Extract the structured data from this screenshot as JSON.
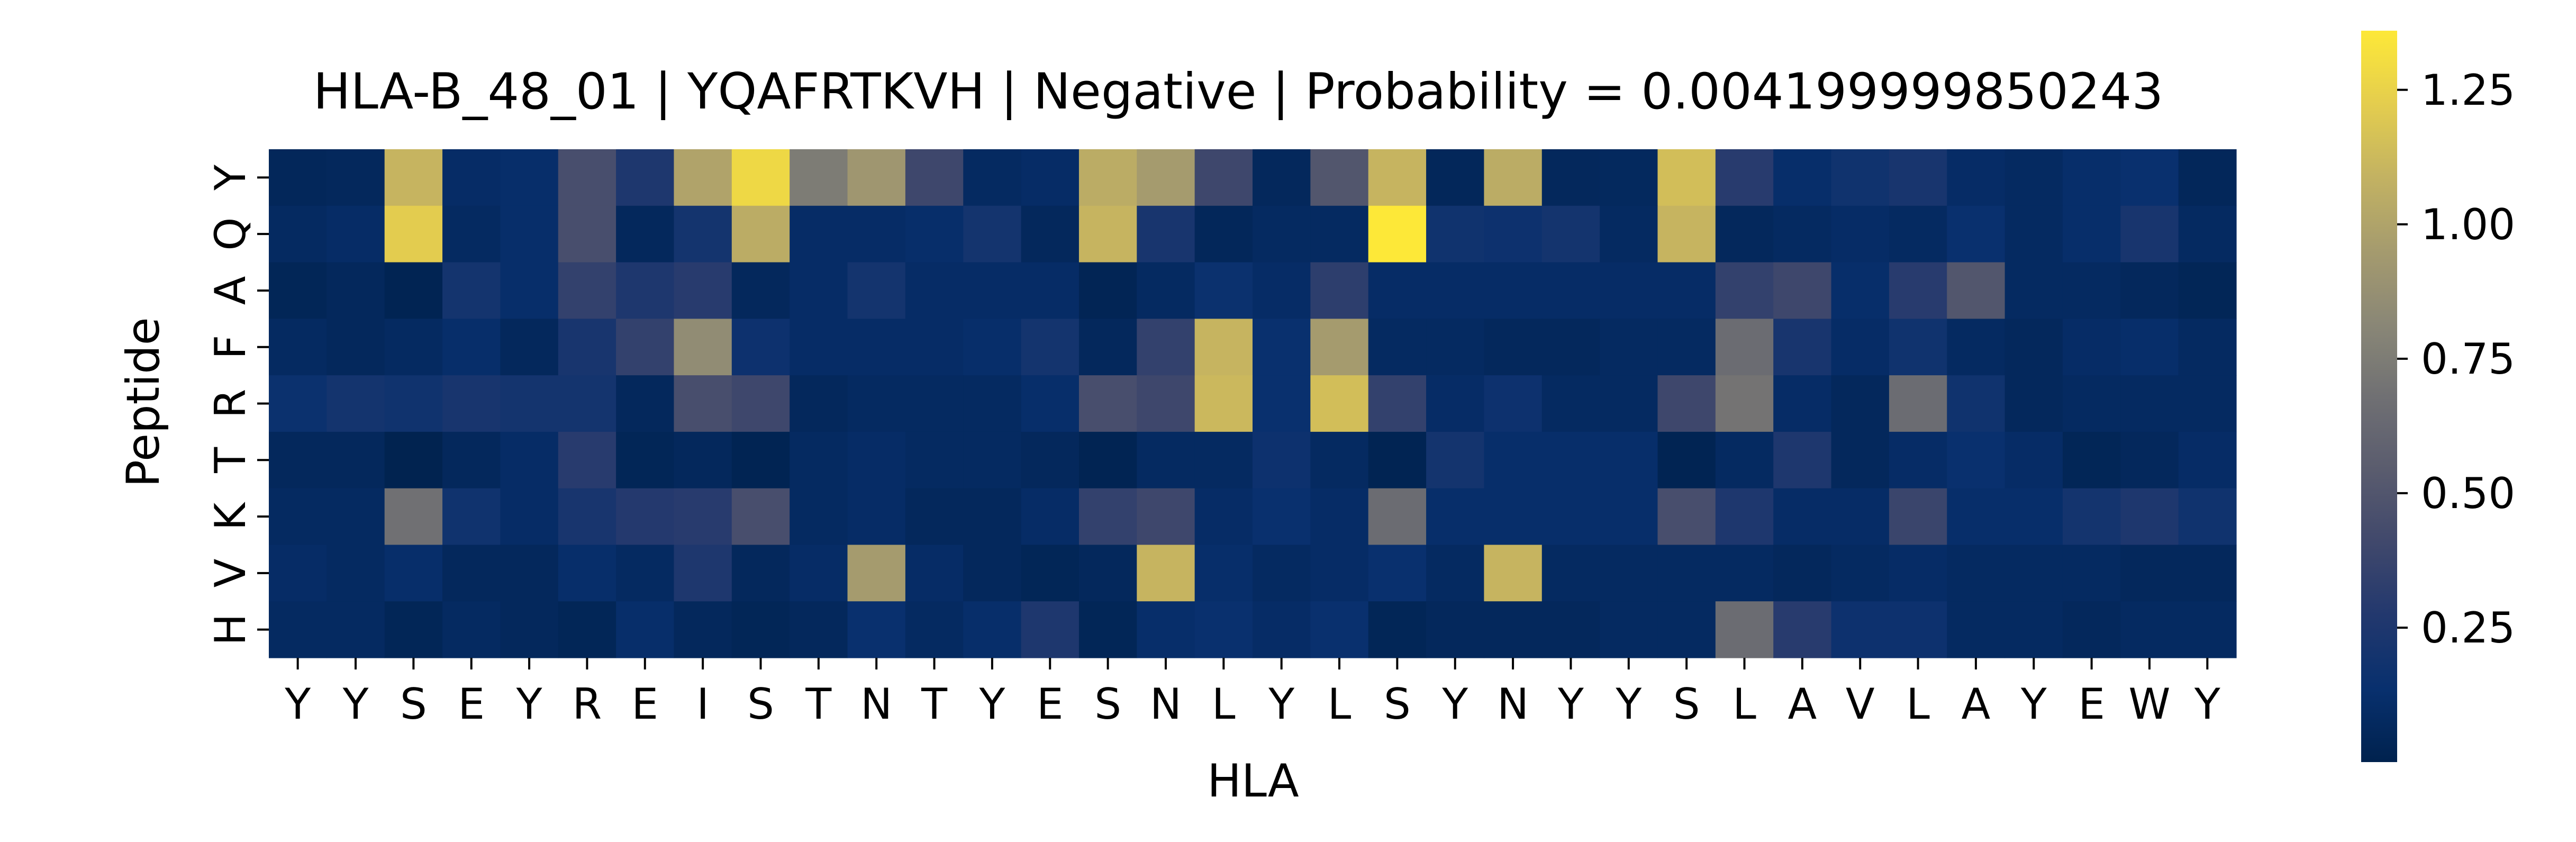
{
  "chart_data": {
    "type": "heatmap",
    "title": "HLA-B_48_01 | YQAFRTKVH | Negative | Probability = 0.004199999850243",
    "xlabel": "HLA",
    "ylabel": "Peptide",
    "x_categories": [
      "Y",
      "Y",
      "S",
      "E",
      "Y",
      "R",
      "E",
      "I",
      "S",
      "T",
      "N",
      "T",
      "Y",
      "E",
      "S",
      "N",
      "L",
      "Y",
      "L",
      "S",
      "Y",
      "N",
      "Y",
      "Y",
      "S",
      "L",
      "A",
      "V",
      "L",
      "A",
      "Y",
      "E",
      "W",
      "Y"
    ],
    "y_categories": [
      "Y",
      "Q",
      "A",
      "F",
      "R",
      "T",
      "K",
      "V",
      "H"
    ],
    "colormap": "cividis",
    "colorbar": {
      "min": 0.0,
      "max": 1.36,
      "ticks": [
        0.25,
        0.5,
        0.75,
        1.0,
        1.25
      ],
      "tick_labels": [
        "0.25",
        "0.50",
        "0.75",
        "1.00",
        "1.25"
      ]
    },
    "values": [
      [
        0.05,
        0.06,
        1.1,
        0.1,
        0.12,
        0.45,
        0.25,
        1.0,
        1.28,
        0.75,
        0.92,
        0.4,
        0.08,
        0.1,
        1.05,
        0.95,
        0.4,
        0.06,
        0.5,
        1.1,
        0.05,
        1.05,
        0.06,
        0.07,
        1.15,
        0.3,
        0.12,
        0.18,
        0.22,
        0.1,
        0.08,
        0.12,
        0.14,
        0.05
      ],
      [
        0.08,
        0.1,
        1.22,
        0.08,
        0.12,
        0.45,
        0.06,
        0.2,
        1.05,
        0.1,
        0.1,
        0.12,
        0.2,
        0.06,
        1.1,
        0.22,
        0.05,
        0.08,
        0.08,
        1.36,
        0.18,
        0.16,
        0.2,
        0.08,
        1.1,
        0.06,
        0.08,
        0.1,
        0.08,
        0.14,
        0.08,
        0.12,
        0.22,
        0.08
      ],
      [
        0.04,
        0.06,
        0.02,
        0.2,
        0.12,
        0.35,
        0.25,
        0.3,
        0.06,
        0.1,
        0.2,
        0.1,
        0.1,
        0.1,
        0.03,
        0.08,
        0.15,
        0.1,
        0.32,
        0.1,
        0.1,
        0.1,
        0.1,
        0.1,
        0.1,
        0.35,
        0.4,
        0.12,
        0.3,
        0.5,
        0.08,
        0.08,
        0.06,
        0.04
      ],
      [
        0.08,
        0.06,
        0.08,
        0.12,
        0.06,
        0.22,
        0.35,
        0.85,
        0.16,
        0.1,
        0.1,
        0.1,
        0.12,
        0.2,
        0.06,
        0.35,
        1.1,
        0.14,
        0.95,
        0.08,
        0.08,
        0.06,
        0.06,
        0.08,
        0.08,
        0.65,
        0.22,
        0.1,
        0.18,
        0.08,
        0.06,
        0.1,
        0.12,
        0.08
      ],
      [
        0.15,
        0.2,
        0.18,
        0.22,
        0.2,
        0.2,
        0.06,
        0.45,
        0.4,
        0.06,
        0.08,
        0.08,
        0.08,
        0.12,
        0.45,
        0.4,
        1.12,
        0.14,
        1.15,
        0.35,
        0.1,
        0.16,
        0.08,
        0.08,
        0.4,
        0.7,
        0.1,
        0.06,
        0.65,
        0.18,
        0.06,
        0.08,
        0.08,
        0.08
      ],
      [
        0.06,
        0.06,
        0.01,
        0.06,
        0.1,
        0.3,
        0.04,
        0.06,
        0.02,
        0.08,
        0.1,
        0.08,
        0.08,
        0.06,
        0.02,
        0.08,
        0.08,
        0.16,
        0.08,
        0.02,
        0.2,
        0.12,
        0.12,
        0.12,
        0.02,
        0.08,
        0.25,
        0.06,
        0.1,
        0.14,
        0.1,
        0.04,
        0.06,
        0.1
      ],
      [
        0.08,
        0.08,
        0.68,
        0.18,
        0.1,
        0.22,
        0.28,
        0.3,
        0.45,
        0.08,
        0.1,
        0.06,
        0.06,
        0.1,
        0.35,
        0.4,
        0.1,
        0.14,
        0.1,
        0.65,
        0.12,
        0.12,
        0.12,
        0.12,
        0.45,
        0.25,
        0.1,
        0.1,
        0.38,
        0.12,
        0.12,
        0.2,
        0.25,
        0.18
      ],
      [
        0.1,
        0.08,
        0.12,
        0.06,
        0.06,
        0.12,
        0.08,
        0.25,
        0.06,
        0.1,
        0.95,
        0.1,
        0.06,
        0.04,
        0.06,
        1.1,
        0.12,
        0.08,
        0.1,
        0.14,
        0.08,
        1.1,
        0.08,
        0.08,
        0.08,
        0.08,
        0.06,
        0.08,
        0.1,
        0.08,
        0.08,
        0.08,
        0.06,
        0.06
      ],
      [
        0.08,
        0.08,
        0.04,
        0.08,
        0.06,
        0.04,
        0.12,
        0.06,
        0.04,
        0.06,
        0.14,
        0.08,
        0.12,
        0.25,
        0.04,
        0.12,
        0.14,
        0.1,
        0.14,
        0.04,
        0.06,
        0.06,
        0.06,
        0.08,
        0.08,
        0.65,
        0.3,
        0.16,
        0.16,
        0.08,
        0.08,
        0.06,
        0.08,
        0.08
      ]
    ]
  }
}
